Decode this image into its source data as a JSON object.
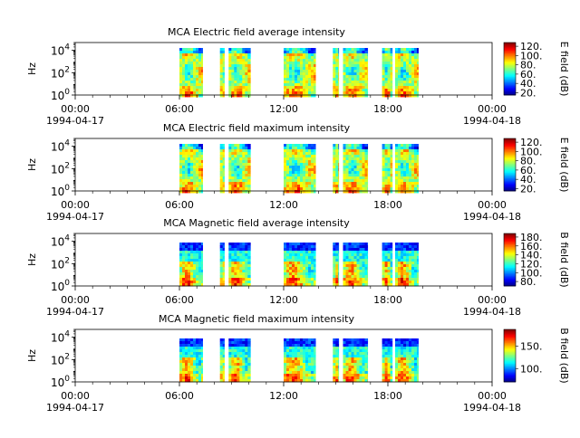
{
  "chart_data": [
    {
      "type": "heatmap",
      "title": "MCA  Electric field average intensity",
      "ylabel": "Hz",
      "yscale": "log",
      "ylim": [
        1,
        50000
      ],
      "yticks": [
        "10^0",
        "10^2",
        "10^4"
      ],
      "xlim": [
        "1994-04-17T00:00",
        "1994-04-18T00:00"
      ],
      "xticks": [
        "00:00",
        "06:00",
        "12:00",
        "18:00",
        "00:00"
      ],
      "xdates": [
        "1994-04-17",
        "1994-04-18"
      ],
      "data_intervals": [
        [
          "06:00",
          "07:20"
        ],
        [
          "08:20",
          "08:35"
        ],
        [
          "08:50",
          "10:05"
        ],
        [
          "12:00",
          "13:50"
        ],
        [
          "14:50",
          "15:10"
        ],
        [
          "15:25",
          "16:50"
        ],
        [
          "17:40",
          "18:15"
        ],
        [
          "18:25",
          "19:45"
        ]
      ],
      "colorbar": {
        "label": "E field (dB)",
        "ticks": [
          "20.",
          "40.",
          "60.",
          "80.",
          "100.",
          "120."
        ],
        "range": [
          15,
          128
        ]
      }
    },
    {
      "type": "heatmap",
      "title": "MCA  Electric field maximum intensity",
      "ylabel": "Hz",
      "yscale": "log",
      "ylim": [
        1,
        50000
      ],
      "yticks": [
        "10^0",
        "10^2",
        "10^4"
      ],
      "xlim": [
        "1994-04-17T00:00",
        "1994-04-18T00:00"
      ],
      "xticks": [
        "00:00",
        "06:00",
        "12:00",
        "18:00",
        "00:00"
      ],
      "xdates": [
        "1994-04-17",
        "1994-04-18"
      ],
      "data_intervals": [
        [
          "06:00",
          "07:20"
        ],
        [
          "08:20",
          "08:35"
        ],
        [
          "08:50",
          "10:05"
        ],
        [
          "12:00",
          "13:50"
        ],
        [
          "14:50",
          "15:10"
        ],
        [
          "15:25",
          "16:50"
        ],
        [
          "17:40",
          "18:15"
        ],
        [
          "18:25",
          "19:45"
        ]
      ],
      "colorbar": {
        "label": "E field (dB)",
        "ticks": [
          "20.",
          "40.",
          "60.",
          "80.",
          "100.",
          "120."
        ],
        "range": [
          15,
          128
        ]
      }
    },
    {
      "type": "heatmap",
      "title": "MCA  Magnetic field average intensity",
      "ylabel": "Hz",
      "yscale": "log",
      "ylim": [
        1,
        50000
      ],
      "yticks": [
        "10^0",
        "10^2",
        "10^4"
      ],
      "xlim": [
        "1994-04-17T00:00",
        "1994-04-18T00:00"
      ],
      "xticks": [
        "00:00",
        "06:00",
        "12:00",
        "18:00",
        "00:00"
      ],
      "xdates": [
        "1994-04-17",
        "1994-04-18"
      ],
      "data_intervals": [
        [
          "06:00",
          "07:20"
        ],
        [
          "08:20",
          "08:35"
        ],
        [
          "08:50",
          "10:05"
        ],
        [
          "12:00",
          "13:50"
        ],
        [
          "14:50",
          "15:10"
        ],
        [
          "15:25",
          "16:50"
        ],
        [
          "17:40",
          "18:15"
        ],
        [
          "18:25",
          "19:45"
        ]
      ],
      "colorbar": {
        "label": "B field (dB)",
        "ticks": [
          "80.",
          "100.",
          "120.",
          "140.",
          "160.",
          "180."
        ],
        "range": [
          70,
          188
        ]
      }
    },
    {
      "type": "heatmap",
      "title": "MCA  Magnetic field maximum intensity",
      "ylabel": "Hz",
      "yscale": "log",
      "ylim": [
        1,
        50000
      ],
      "yticks": [
        "10^0",
        "10^2",
        "10^4"
      ],
      "xlim": [
        "1994-04-17T00:00",
        "1994-04-18T00:00"
      ],
      "xticks": [
        "00:00",
        "06:00",
        "12:00",
        "18:00",
        "00:00"
      ],
      "xdates": [
        "1994-04-17",
        "1994-04-18"
      ],
      "data_intervals": [
        [
          "06:00",
          "07:20"
        ],
        [
          "08:20",
          "08:35"
        ],
        [
          "08:50",
          "10:05"
        ],
        [
          "12:00",
          "13:50"
        ],
        [
          "14:50",
          "15:10"
        ],
        [
          "15:25",
          "16:50"
        ],
        [
          "17:40",
          "18:15"
        ],
        [
          "18:25",
          "19:45"
        ]
      ],
      "colorbar": {
        "label": "B field (dB)",
        "ticks": [
          "100.",
          "150."
        ],
        "range": [
          70,
          188
        ]
      }
    }
  ]
}
